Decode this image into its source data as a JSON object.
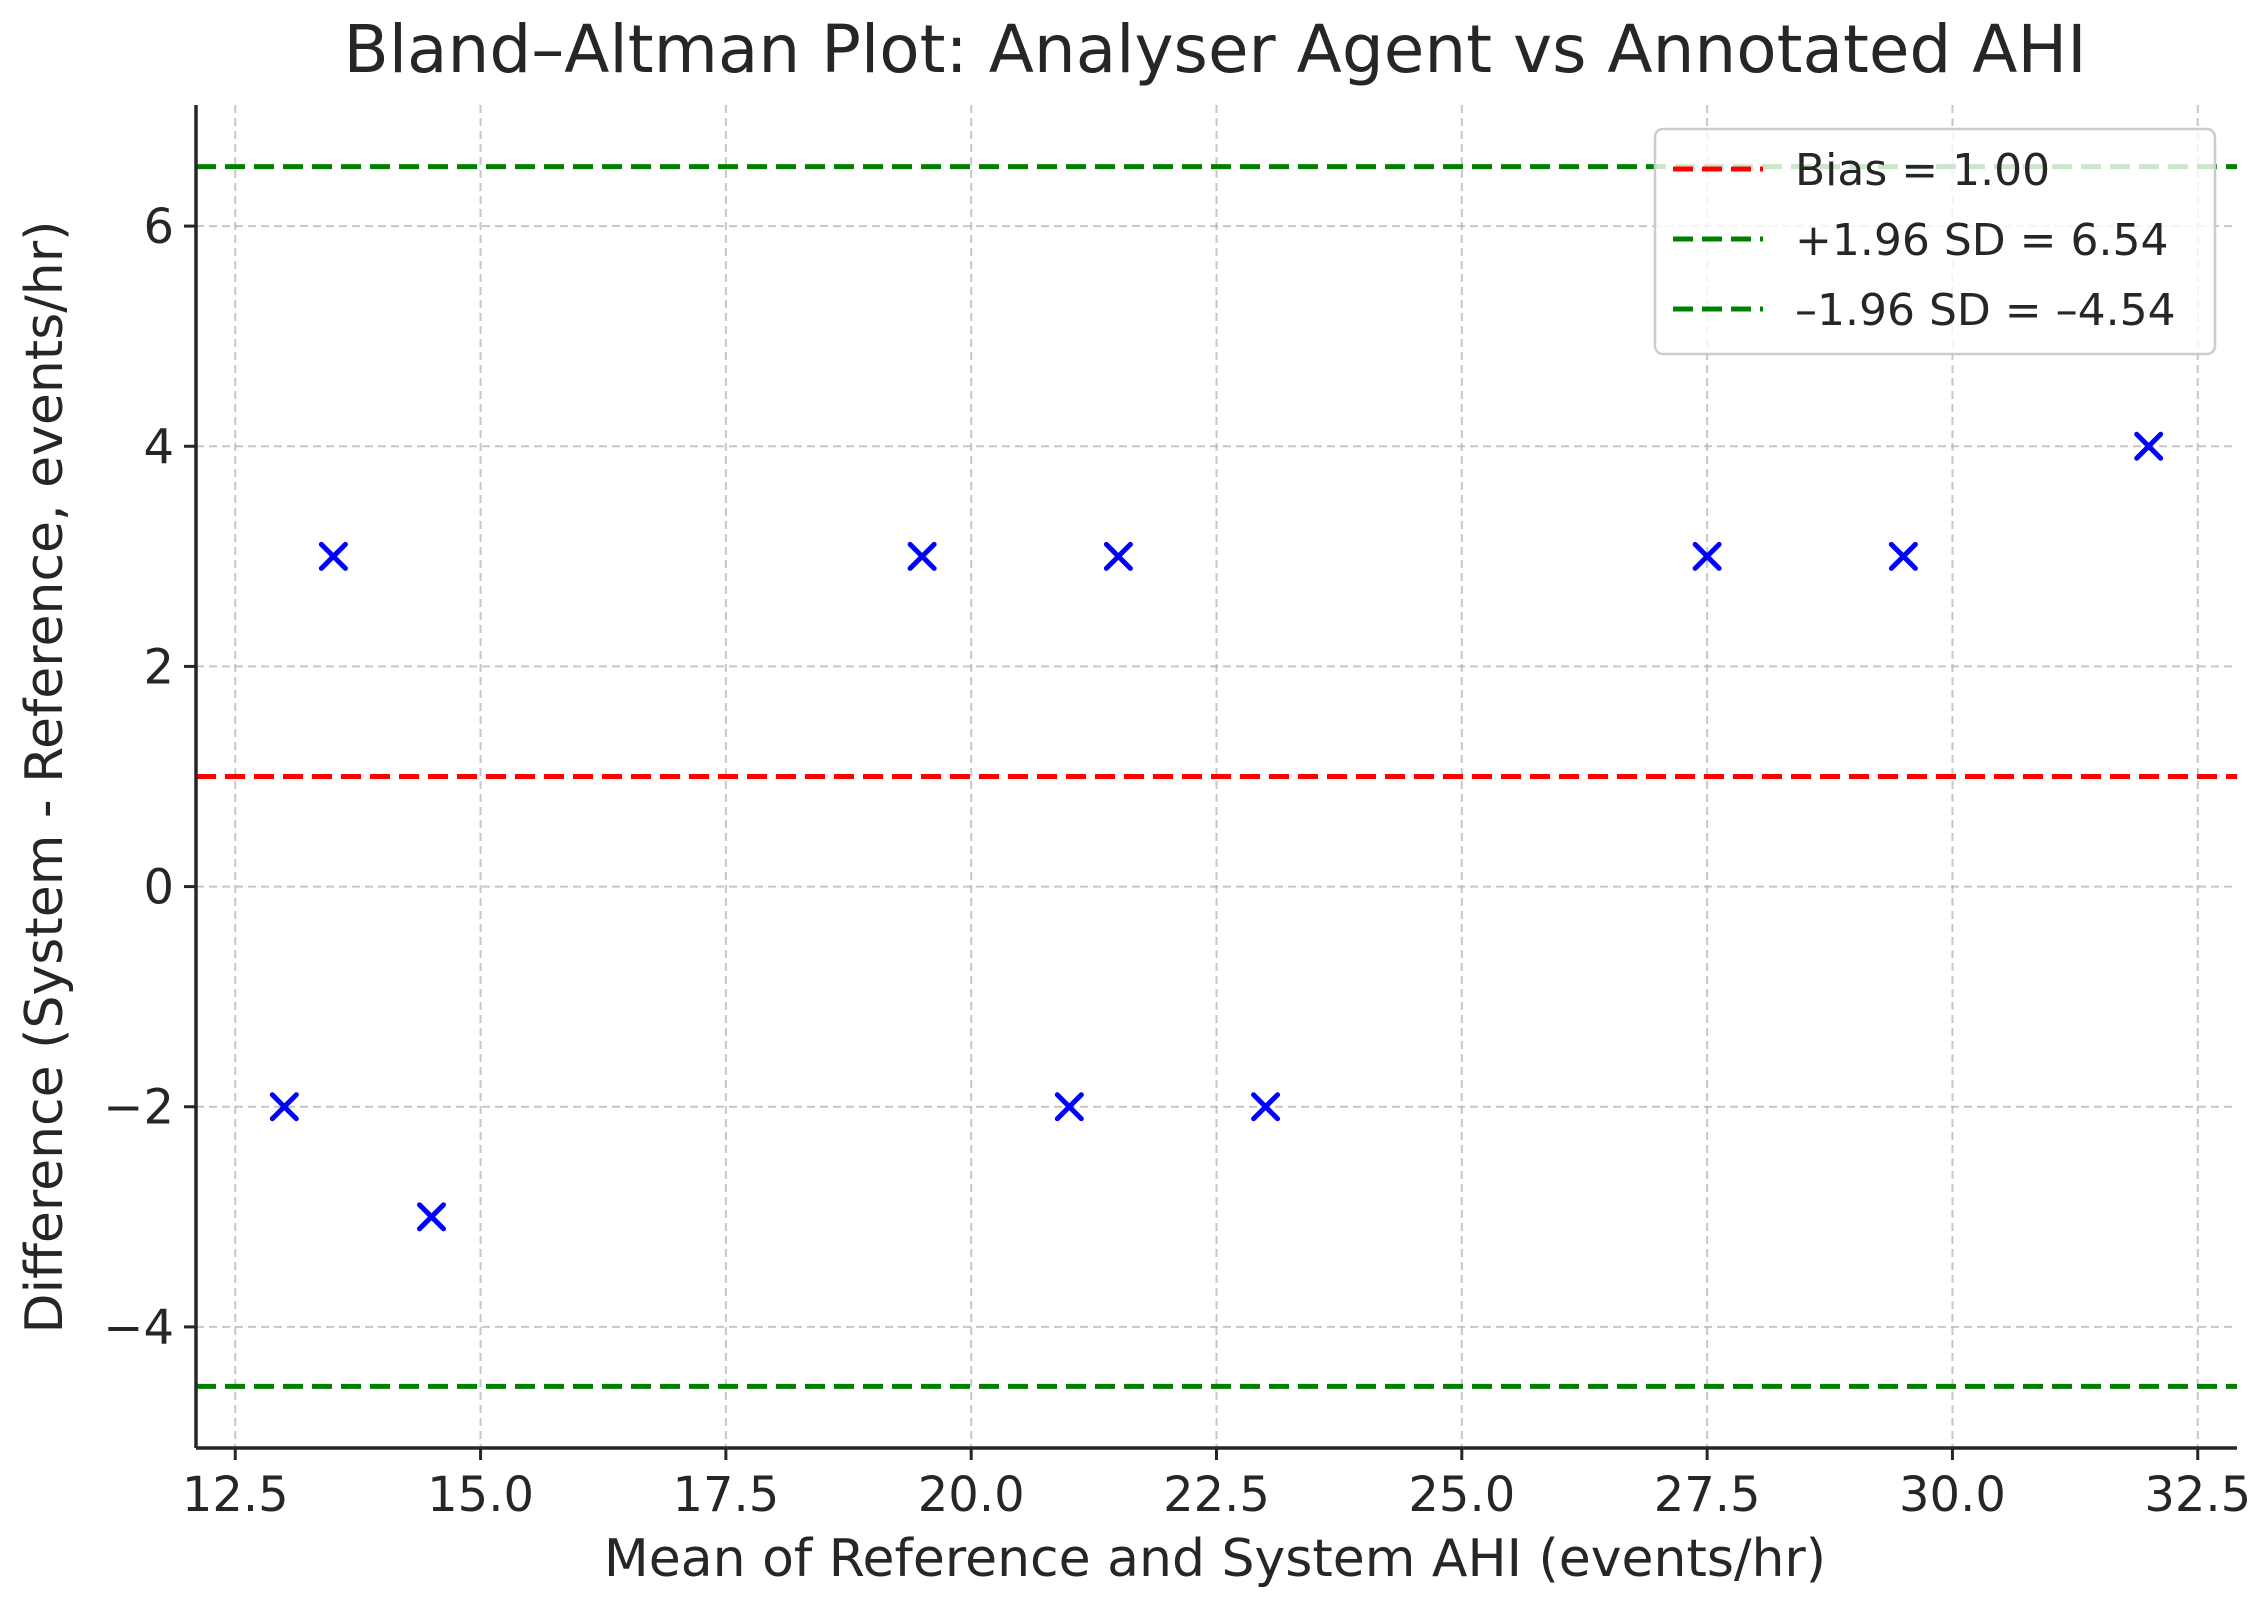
{
  "chart_data": {
    "type": "scatter",
    "title": "Bland–Altman Plot: Analyser Agent vs Annotated AHI",
    "xlabel": "Mean of Reference and System AHI (events/hr)",
    "ylabel": "Difference (System - Reference, events/hr)",
    "xlim": [
      12.1,
      32.9
    ],
    "ylim": [
      -5.1,
      7.1
    ],
    "xticks": [
      12.5,
      15.0,
      17.5,
      20.0,
      22.5,
      25.0,
      27.5,
      30.0,
      32.5
    ],
    "xtick_labels": [
      "12.5",
      "15.0",
      "17.5",
      "20.0",
      "22.5",
      "25.0",
      "27.5",
      "30.0",
      "32.5"
    ],
    "yticks": [
      -4,
      -2,
      0,
      2,
      4,
      6
    ],
    "ytick_labels": [
      "−4",
      "−2",
      "0",
      "2",
      "4",
      "6"
    ],
    "grid": true,
    "marker": "x",
    "marker_color": "#0000ff",
    "points": [
      {
        "x": 13.0,
        "y": -2
      },
      {
        "x": 13.5,
        "y": 3
      },
      {
        "x": 14.5,
        "y": -3
      },
      {
        "x": 19.5,
        "y": 3
      },
      {
        "x": 21.0,
        "y": -2
      },
      {
        "x": 21.5,
        "y": 3
      },
      {
        "x": 23.0,
        "y": -2
      },
      {
        "x": 27.5,
        "y": 3
      },
      {
        "x": 29.5,
        "y": 3
      },
      {
        "x": 32.0,
        "y": 4
      }
    ],
    "reference_lines": [
      {
        "label": "Bias = 1.00",
        "y": 1.0,
        "color": "#ff0000",
        "style": "dashed"
      },
      {
        "label": "+1.96 SD = 6.54",
        "y": 6.54,
        "color": "#008000",
        "style": "dashed"
      },
      {
        "label": "–1.96 SD = –4.54",
        "y": -4.54,
        "color": "#008000",
        "style": "dashed"
      }
    ],
    "legend_position": "top-right"
  }
}
